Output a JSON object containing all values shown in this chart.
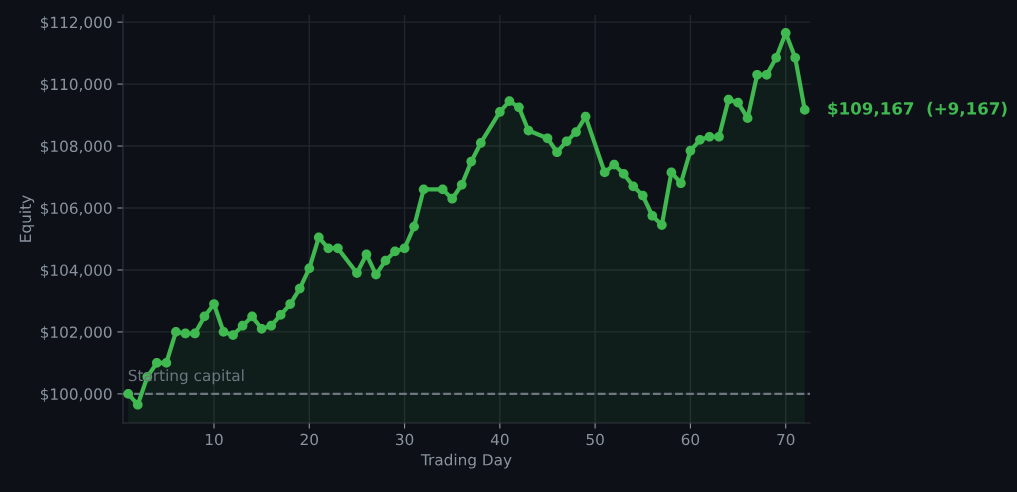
{
  "chart_data": {
    "type": "line",
    "xlabel": "Trading Day",
    "ylabel": "Equity",
    "marker": "circle",
    "line_style": "solid",
    "grid": true,
    "legend": false,
    "x": [
      1,
      2,
      3,
      4,
      5,
      6,
      7,
      8,
      9,
      10,
      11,
      12,
      13,
      14,
      15,
      16,
      17,
      18,
      19,
      20,
      21,
      22,
      23,
      25,
      26,
      27,
      28,
      29,
      30,
      31,
      32,
      34,
      35,
      36,
      37,
      38,
      40,
      41,
      42,
      43,
      45,
      46,
      47,
      48,
      49,
      51,
      52,
      53,
      54,
      55,
      56,
      57,
      58,
      59,
      60,
      61,
      62,
      63,
      64,
      65,
      66,
      67,
      68,
      69,
      70,
      71,
      72
    ],
    "series": [
      {
        "color": "#3fb950",
        "values": [
          100000,
          99650,
          100550,
          101000,
          101000,
          102000,
          101950,
          101950,
          102500,
          102900,
          102000,
          101900,
          102200,
          102500,
          102100,
          102200,
          102550,
          102900,
          103400,
          104050,
          105050,
          104700,
          104700,
          103900,
          104500,
          103850,
          104300,
          104600,
          104700,
          105400,
          106600,
          106600,
          106300,
          106750,
          107500,
          108100,
          109100,
          109450,
          109250,
          108500,
          108250,
          107800,
          108150,
          108450,
          108950,
          107150,
          107400,
          107100,
          106700,
          106400,
          105750,
          105450,
          107150,
          106800,
          107850,
          108200,
          108300,
          108300,
          109500,
          109400,
          108900,
          110300,
          110300,
          110850,
          111650,
          110850,
          109167
        ]
      }
    ],
    "xlim": [
      0.45,
      72.55
    ],
    "xticks": [
      10,
      20,
      30,
      40,
      50,
      60,
      70
    ],
    "ylim": [
      99060,
      112230
    ],
    "yticks": [
      {
        "value": 100000,
        "label": "$100,000"
      },
      {
        "value": 102000,
        "label": "$102,000"
      },
      {
        "value": 104000,
        "label": "$104,000"
      },
      {
        "value": 106000,
        "label": "$106,000"
      },
      {
        "value": 108000,
        "label": "$108,000"
      },
      {
        "value": 110000,
        "label": "$110,000"
      },
      {
        "value": 112000,
        "label": "$112,000"
      }
    ],
    "ref_lines": [
      {
        "axis": "y",
        "value": 100000,
        "label": "Starting capital",
        "color": "#6e7681",
        "line_style": "dashed"
      }
    ],
    "annotations": [
      {
        "text": "$109,167  (+9,167)",
        "x": 72,
        "y": 109167
      }
    ]
  }
}
